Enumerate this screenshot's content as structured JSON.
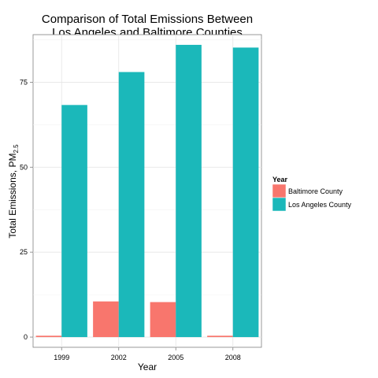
{
  "chart_data": {
    "type": "bar",
    "title_line1": "Comparison of Total Emissions Between",
    "title_line2": "Los Angeles and Baltimore Counties",
    "xlabel": "Year",
    "ylabel_main": "Total Emissions, PM",
    "ylabel_sub": "2.5",
    "categories": [
      "1999",
      "2002",
      "2005",
      "2008"
    ],
    "yticks": [
      0,
      25,
      50,
      75
    ],
    "ylim": [
      -3,
      89
    ],
    "grid": true,
    "legend_position": "right",
    "legend_title": "Year",
    "series": [
      {
        "name": "Baltimore County",
        "color": "#F8766D",
        "values": [
          0.4,
          10.5,
          10.3,
          0.4
        ]
      },
      {
        "name": "Los Angeles County",
        "color": "#1BB8BA",
        "values": [
          68.3,
          78.0,
          86.0,
          85.2
        ]
      }
    ]
  }
}
